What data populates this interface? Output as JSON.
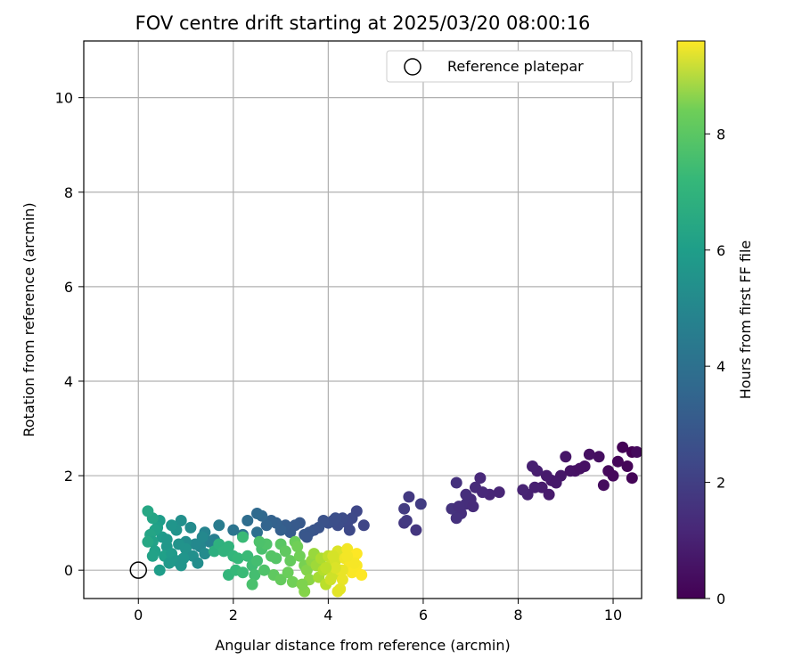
{
  "chart_data": {
    "type": "scatter",
    "title": "FOV centre drift starting at 2025/03/20 08:00:16",
    "xlabel": "Angular distance from reference (arcmin)",
    "ylabel": "Rotation from reference (arcmin)",
    "xlim": [
      -1.15,
      10.6
    ],
    "ylim": [
      -0.6,
      11.2
    ],
    "xticks": [
      0,
      2,
      4,
      6,
      8,
      10
    ],
    "yticks": [
      0,
      2,
      4,
      6,
      8,
      10
    ],
    "grid": true,
    "legend": {
      "placement": "top-right",
      "entries": [
        "Reference platepar"
      ]
    },
    "reference_point": {
      "x": 0,
      "y": 0,
      "label": "Reference platepar"
    },
    "colorbar": {
      "label": "Hours from first FF file",
      "colormap": "viridis",
      "range": [
        0,
        9.6
      ],
      "ticks": [
        0,
        2,
        4,
        6,
        8
      ]
    },
    "series": [
      {
        "color_by": "hours",
        "points": [
          [
            10.4,
            2.5,
            0.0
          ],
          [
            10.2,
            2.6,
            0.05
          ],
          [
            10.3,
            2.2,
            0.1
          ],
          [
            10.1,
            2.3,
            0.15
          ],
          [
            9.9,
            2.1,
            0.2
          ],
          [
            10.5,
            2.5,
            0.25
          ],
          [
            9.8,
            1.8,
            0.3
          ],
          [
            9.7,
            2.4,
            0.35
          ],
          [
            9.5,
            2.45,
            0.4
          ],
          [
            9.4,
            2.2,
            0.45
          ],
          [
            9.2,
            2.1,
            0.5
          ],
          [
            9.0,
            2.4,
            0.55
          ],
          [
            8.9,
            2.0,
            0.6
          ],
          [
            8.7,
            1.9,
            0.65
          ],
          [
            8.6,
            2.0,
            0.7
          ],
          [
            8.5,
            1.75,
            0.75
          ],
          [
            8.4,
            2.1,
            0.8
          ],
          [
            8.3,
            2.2,
            0.85
          ],
          [
            8.2,
            1.6,
            0.9
          ],
          [
            8.1,
            1.7,
            0.95
          ],
          [
            9.1,
            2.1,
            0.5
          ],
          [
            8.8,
            1.85,
            0.65
          ],
          [
            10.0,
            2.0,
            0.2
          ],
          [
            9.3,
            2.15,
            0.45
          ],
          [
            8.35,
            1.75,
            0.85
          ],
          [
            8.65,
            1.6,
            0.7
          ],
          [
            10.4,
            1.95,
            0.1
          ],
          [
            7.6,
            1.65,
            1.0
          ],
          [
            7.4,
            1.6,
            1.05
          ],
          [
            7.2,
            1.95,
            1.1
          ],
          [
            7.1,
            1.75,
            1.15
          ],
          [
            7.0,
            1.5,
            1.2
          ],
          [
            6.9,
            1.4,
            1.25
          ],
          [
            6.8,
            1.2,
            1.3
          ],
          [
            6.7,
            1.1,
            1.35
          ],
          [
            6.6,
            1.3,
            1.4
          ],
          [
            6.9,
            1.6,
            1.25
          ],
          [
            7.05,
            1.35,
            1.2
          ],
          [
            6.75,
            1.35,
            1.3
          ],
          [
            6.7,
            1.85,
            1.35
          ],
          [
            7.25,
            1.65,
            1.1
          ],
          [
            5.85,
            0.85,
            1.5
          ],
          [
            5.6,
            1.0,
            1.55
          ],
          [
            5.65,
            1.05,
            1.6
          ],
          [
            5.7,
            1.55,
            1.6
          ],
          [
            5.6,
            1.3,
            1.65
          ],
          [
            5.95,
            1.4,
            1.7
          ],
          [
            4.75,
            0.95,
            2.0
          ],
          [
            4.6,
            1.25,
            2.05
          ],
          [
            4.5,
            1.1,
            2.1
          ],
          [
            4.4,
            1.0,
            2.15
          ],
          [
            4.3,
            1.1,
            2.2
          ],
          [
            4.2,
            0.95,
            2.25
          ],
          [
            4.1,
            1.05,
            2.3
          ],
          [
            4.0,
            1.0,
            2.35
          ],
          [
            3.9,
            1.05,
            2.4
          ],
          [
            3.8,
            0.9,
            2.45
          ],
          [
            3.7,
            0.85,
            2.5
          ],
          [
            3.6,
            0.8,
            2.55
          ],
          [
            3.5,
            0.75,
            2.6
          ],
          [
            3.4,
            1.0,
            2.65
          ],
          [
            3.3,
            0.95,
            2.7
          ],
          [
            3.2,
            0.8,
            2.75
          ],
          [
            3.1,
            0.95,
            2.8
          ],
          [
            3.0,
            0.85,
            2.9
          ],
          [
            2.9,
            1.0,
            2.95
          ],
          [
            2.8,
            1.05,
            3.0
          ],
          [
            2.7,
            0.95,
            3.1
          ],
          [
            2.6,
            1.15,
            3.2
          ],
          [
            2.5,
            1.2,
            3.3
          ],
          [
            2.3,
            1.05,
            3.4
          ],
          [
            2.5,
            0.8,
            3.5
          ],
          [
            2.2,
            0.75,
            3.6
          ],
          [
            2.0,
            0.85,
            3.7
          ],
          [
            4.45,
            0.85,
            2.1
          ],
          [
            4.15,
            1.1,
            2.3
          ],
          [
            3.55,
            0.7,
            2.55
          ],
          [
            1.7,
            0.95,
            4.0
          ],
          [
            1.6,
            0.65,
            4.1
          ],
          [
            1.5,
            0.6,
            4.2
          ],
          [
            1.4,
            0.8,
            4.3
          ],
          [
            1.3,
            0.5,
            4.4
          ],
          [
            1.2,
            0.55,
            4.5
          ],
          [
            1.1,
            0.9,
            4.6
          ],
          [
            1.0,
            0.6,
            4.7
          ],
          [
            0.9,
            1.05,
            4.8
          ],
          [
            0.8,
            0.85,
            4.9
          ],
          [
            0.7,
            0.95,
            5.0
          ],
          [
            0.6,
            0.5,
            5.1
          ],
          [
            0.5,
            0.7,
            5.2
          ],
          [
            0.45,
            1.05,
            5.3
          ],
          [
            0.4,
            0.9,
            5.4
          ],
          [
            0.35,
            0.85,
            5.5
          ],
          [
            0.3,
            1.1,
            5.6
          ],
          [
            0.2,
            1.25,
            5.7
          ],
          [
            0.25,
            0.75,
            5.6
          ],
          [
            0.3,
            0.6,
            5.5
          ],
          [
            0.55,
            0.3,
            5.4
          ],
          [
            0.45,
            0.0,
            5.3
          ],
          [
            0.7,
            0.35,
            5.2
          ],
          [
            0.8,
            0.2,
            5.1
          ],
          [
            0.9,
            0.1,
            5.0
          ],
          [
            1.0,
            0.45,
            4.9
          ],
          [
            1.15,
            0.3,
            4.8
          ],
          [
            1.25,
            0.15,
            4.7
          ],
          [
            1.4,
            0.35,
            4.6
          ],
          [
            0.65,
            0.15,
            5.15
          ],
          [
            0.35,
            0.4,
            5.45
          ],
          [
            0.95,
            0.25,
            5.0
          ],
          [
            1.35,
            0.7,
            4.5
          ],
          [
            0.6,
            0.65,
            5.1
          ],
          [
            0.3,
            0.3,
            5.5
          ],
          [
            0.2,
            0.6,
            5.7
          ],
          [
            0.85,
            0.55,
            4.9
          ],
          [
            1.6,
            0.4,
            6.0
          ],
          [
            1.7,
            0.55,
            6.1
          ],
          [
            1.8,
            0.4,
            6.2
          ],
          [
            1.9,
            0.5,
            6.2
          ],
          [
            2.0,
            0.3,
            6.3
          ],
          [
            2.1,
            0.25,
            6.4
          ],
          [
            2.2,
            0.7,
            6.5
          ],
          [
            2.3,
            0.3,
            6.5
          ],
          [
            2.4,
            0.1,
            6.6
          ],
          [
            2.5,
            0.2,
            6.7
          ],
          [
            2.45,
            -0.1,
            6.7
          ],
          [
            2.4,
            -0.3,
            6.8
          ],
          [
            2.6,
            0.45,
            6.8
          ],
          [
            2.7,
            0.55,
            6.9
          ],
          [
            2.8,
            0.3,
            7.0
          ],
          [
            1.9,
            -0.1,
            6.3
          ],
          [
            2.05,
            0.0,
            6.4
          ],
          [
            2.2,
            -0.05,
            6.5
          ],
          [
            2.9,
            0.25,
            7.0
          ],
          [
            3.0,
            0.55,
            7.1
          ],
          [
            3.1,
            0.4,
            7.2
          ],
          [
            3.2,
            0.2,
            7.3
          ],
          [
            3.3,
            0.6,
            7.4
          ],
          [
            3.4,
            0.3,
            7.5
          ],
          [
            3.5,
            0.1,
            7.6
          ],
          [
            2.85,
            -0.1,
            7.2
          ],
          [
            3.0,
            -0.2,
            7.3
          ],
          [
            3.15,
            -0.05,
            7.4
          ],
          [
            3.25,
            -0.25,
            7.5
          ],
          [
            2.65,
            0.0,
            6.9
          ],
          [
            2.55,
            0.6,
            6.85
          ],
          [
            3.35,
            0.5,
            7.5
          ],
          [
            3.55,
            0.0,
            7.8
          ],
          [
            3.6,
            -0.2,
            7.9
          ],
          [
            3.65,
            0.2,
            8.0
          ],
          [
            3.7,
            0.35,
            8.1
          ],
          [
            3.75,
            0.1,
            8.2
          ],
          [
            3.8,
            -0.15,
            8.3
          ],
          [
            3.85,
            0.25,
            8.4
          ],
          [
            3.9,
            0.0,
            8.5
          ],
          [
            3.95,
            -0.3,
            8.6
          ],
          [
            4.0,
            0.3,
            8.7
          ],
          [
            4.05,
            0.1,
            8.8
          ],
          [
            4.1,
            -0.1,
            8.9
          ],
          [
            4.15,
            0.2,
            9.0
          ],
          [
            4.2,
            0.4,
            9.1
          ],
          [
            4.25,
            0.0,
            9.2
          ],
          [
            4.3,
            -0.2,
            9.3
          ],
          [
            4.35,
            0.25,
            9.4
          ],
          [
            4.4,
            0.45,
            9.45
          ],
          [
            4.45,
            0.1,
            9.5
          ],
          [
            4.5,
            -0.05,
            9.55
          ],
          [
            4.55,
            0.3,
            9.6
          ],
          [
            4.6,
            0.35,
            9.6
          ],
          [
            4.6,
            0.1,
            9.55
          ],
          [
            4.55,
            0.15,
            9.5
          ],
          [
            4.25,
            -0.4,
            9.25
          ],
          [
            4.2,
            -0.45,
            9.2
          ],
          [
            4.3,
            0.0,
            9.3
          ],
          [
            4.7,
            -0.1,
            9.6
          ],
          [
            3.5,
            -0.45,
            7.8
          ],
          [
            3.45,
            -0.3,
            7.7
          ],
          [
            4.05,
            -0.2,
            8.9
          ],
          [
            4.4,
            0.3,
            9.45
          ],
          [
            4.15,
            0.05,
            9.1
          ],
          [
            4.1,
            0.3,
            9.0
          ],
          [
            3.95,
            0.05,
            8.65
          ]
        ]
      }
    ]
  }
}
